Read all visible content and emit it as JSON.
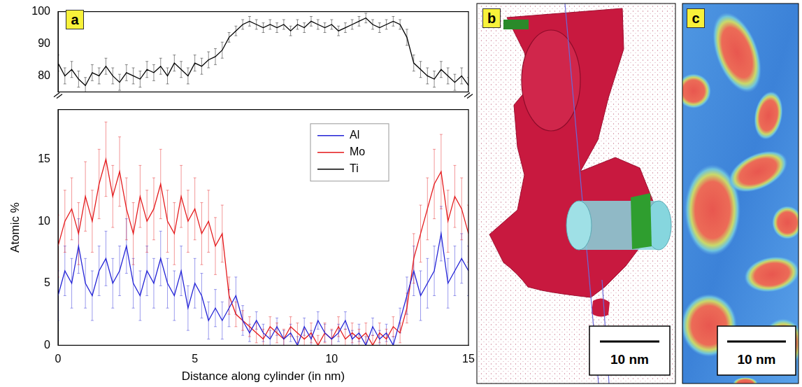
{
  "panel_labels": [
    "a",
    "b",
    "c"
  ],
  "scale_bars": [
    "10 nm",
    "10 nm"
  ],
  "chart_data": {
    "type": "line",
    "x_label": "Distance along cylinder (in nm)",
    "y_label": "Atomic %",
    "x": [
      0,
      0.25,
      0.5,
      0.75,
      1,
      1.25,
      1.5,
      1.75,
      2,
      2.25,
      2.5,
      2.75,
      3,
      3.25,
      3.5,
      3.75,
      4,
      4.25,
      4.5,
      4.75,
      5,
      5.25,
      5.5,
      5.75,
      6,
      6.25,
      6.5,
      6.75,
      7,
      7.25,
      7.5,
      7.75,
      8,
      8.25,
      8.5,
      8.75,
      9,
      9.25,
      9.5,
      9.75,
      10,
      10.25,
      10.5,
      10.75,
      11,
      11.25,
      11.5,
      11.75,
      12,
      12.25,
      12.5,
      12.75,
      13,
      13.25,
      13.5,
      13.75,
      14,
      14.25,
      14.5,
      14.75,
      15
    ],
    "series": [
      {
        "name": "Al",
        "color": "#2424d6",
        "values": [
          4,
          6,
          5,
          8,
          5,
          4,
          6,
          7,
          5,
          6,
          8,
          5,
          4,
          6,
          5,
          7,
          5,
          4,
          6,
          3,
          5,
          4,
          2,
          3,
          2,
          3,
          4,
          2,
          1,
          2,
          1,
          0.5,
          1.5,
          0.5,
          1,
          0,
          1.5,
          0.5,
          2,
          1,
          0.5,
          1,
          2,
          0.5,
          1,
          0,
          1.5,
          0.5,
          1,
          0,
          2,
          4,
          6,
          4,
          5,
          6,
          9,
          5,
          6,
          7,
          6
        ],
        "errors": [
          2,
          2,
          2,
          2.2,
          2,
          2,
          2,
          2.2,
          2,
          2,
          2.2,
          2,
          2,
          2,
          2,
          2.2,
          2,
          2,
          2,
          1.8,
          2,
          1.8,
          1.5,
          1.5,
          1.5,
          1.5,
          1.5,
          1.2,
          0.7,
          0.7,
          0.7,
          0.7,
          0.7,
          0.7,
          0.7,
          0.7,
          0.7,
          0.7,
          0.7,
          0.7,
          0.7,
          0.7,
          0.7,
          0.7,
          0.7,
          0.7,
          0.7,
          0.7,
          0.7,
          0.7,
          1,
          1.5,
          2,
          2,
          2,
          2,
          2.2,
          2,
          2,
          2,
          2
        ]
      },
      {
        "name": "Mo",
        "color": "#e41a1c",
        "values": [
          8,
          10,
          11,
          9,
          12,
          10,
          13,
          15,
          12,
          14,
          11,
          9,
          12,
          10,
          11,
          13,
          10,
          9,
          12,
          10,
          11,
          9,
          10,
          8,
          9,
          4,
          2.5,
          2,
          1.5,
          1,
          0.5,
          1.5,
          1,
          0.5,
          1.5,
          1,
          0.5,
          1,
          0,
          1,
          0.5,
          1.5,
          0.5,
          1,
          0.5,
          1,
          0,
          1,
          0.5,
          1.5,
          1,
          3,
          7,
          9,
          11,
          13,
          14,
          10,
          12,
          11,
          9
        ],
        "errors": [
          2.5,
          2.5,
          2.5,
          2.5,
          2.8,
          2.5,
          2.8,
          3,
          2.5,
          2.8,
          2.5,
          2.5,
          2.5,
          2.5,
          2.5,
          2.8,
          2.5,
          2.5,
          2.5,
          2.5,
          2.5,
          2.5,
          2.5,
          2.3,
          2.3,
          1.5,
          1,
          0.8,
          0.8,
          0.8,
          0.8,
          0.8,
          0.8,
          0.8,
          0.8,
          0.8,
          0.8,
          0.8,
          0.8,
          0.8,
          0.8,
          0.8,
          0.8,
          0.8,
          0.8,
          0.8,
          0.8,
          0.8,
          0.8,
          0.8,
          0.8,
          1.2,
          2,
          2.3,
          2.5,
          2.8,
          3,
          2.5,
          2.5,
          2.5,
          2.3
        ]
      },
      {
        "name": "Ti",
        "color": "#000000",
        "axis": "y2",
        "values": [
          84,
          80,
          82,
          79,
          77,
          81,
          80,
          83,
          80,
          78,
          81,
          80,
          79,
          82,
          81,
          83,
          80,
          84,
          82,
          80,
          84,
          83,
          85,
          86,
          88,
          92,
          94,
          96,
          97,
          96,
          95,
          96,
          95,
          96,
          94,
          96,
          95,
          97,
          96,
          95,
          96,
          94,
          95,
          96,
          97,
          98,
          96,
          95,
          96,
          97,
          96,
          92,
          84,
          82,
          80,
          79,
          82,
          80,
          78,
          80,
          77
        ],
        "errors": [
          2.5,
          2.5,
          2.5,
          2.5,
          2.5,
          2.5,
          2.5,
          2.5,
          2.5,
          2.5,
          2.5,
          2.5,
          2.5,
          2.5,
          2.5,
          2.5,
          2.5,
          2.5,
          2.5,
          2.5,
          2.5,
          2.5,
          2.5,
          2.5,
          2.5,
          1.5,
          1.5,
          1.5,
          1.5,
          1.5,
          1.5,
          1.5,
          1.5,
          1.5,
          1.5,
          1.5,
          1.5,
          1.5,
          1.5,
          1.5,
          1.5,
          1.5,
          1.5,
          1.5,
          1.5,
          1.5,
          1.5,
          1.5,
          1.5,
          1.5,
          1.5,
          2.5,
          2.5,
          2.5,
          2.5,
          2.5,
          2.5,
          2.5,
          2.5,
          2.5,
          2.5
        ]
      }
    ],
    "xlim": [
      0,
      15
    ],
    "xticks": [
      0,
      5,
      10,
      15
    ],
    "ylim": [
      0,
      19
    ],
    "yticks": [
      0,
      5,
      10,
      15
    ],
    "y2lim": [
      75,
      100
    ],
    "y2ticks": [
      80,
      90,
      100
    ],
    "legend": "upper right",
    "grid": false
  }
}
